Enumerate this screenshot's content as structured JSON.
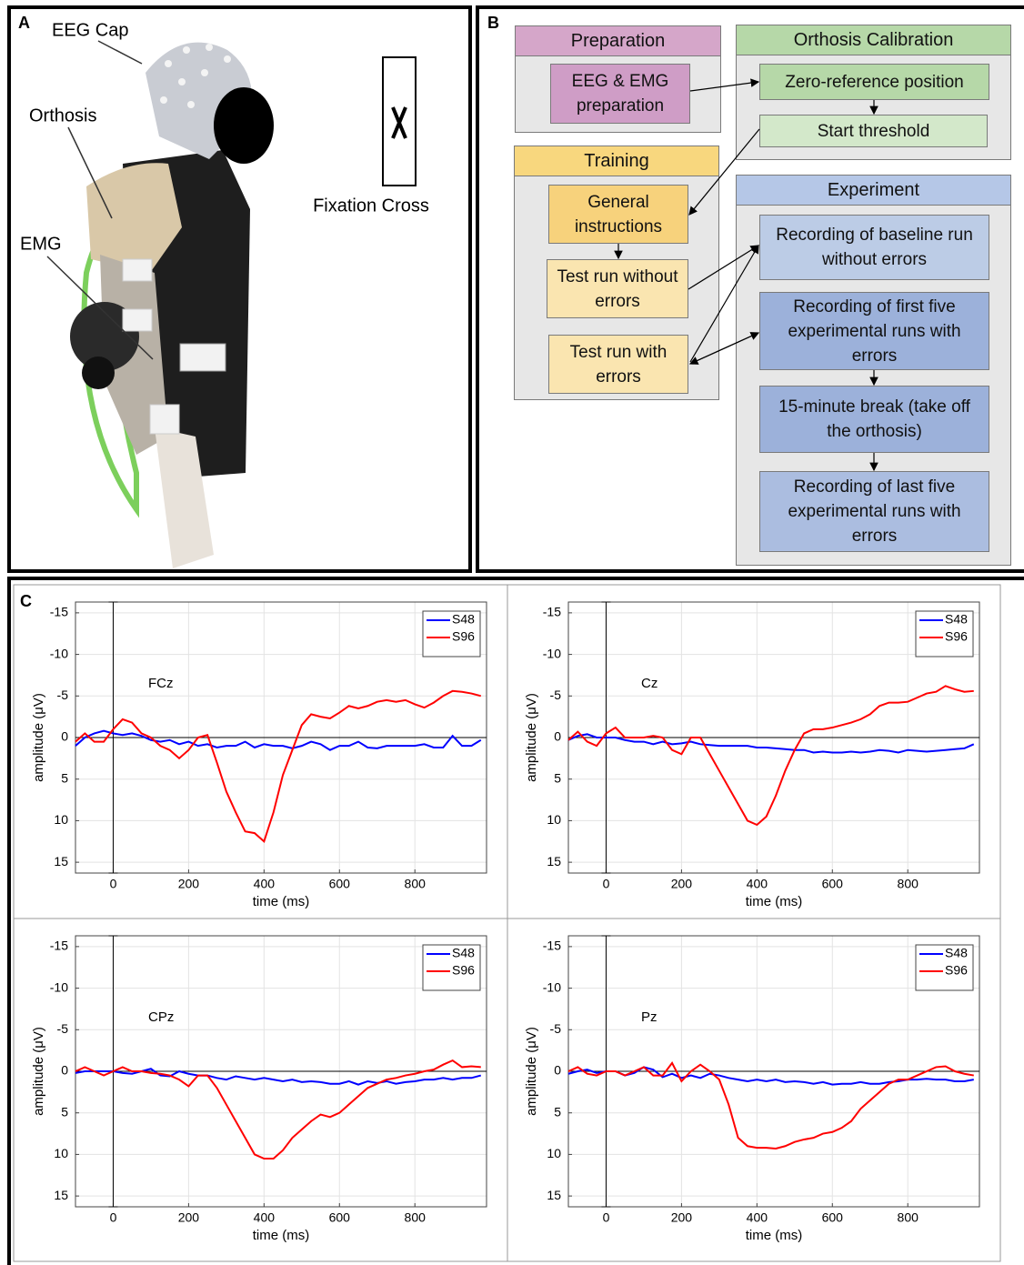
{
  "panel_a": {
    "label": "A",
    "callouts": [
      "EEG Cap",
      "Orthosis",
      "EMG"
    ],
    "fixation": "Fixation Cross"
  },
  "panel_b": {
    "label": "B",
    "groups": [
      {
        "title": "Preparation",
        "items": [
          "EEG & EMG preparation"
        ]
      },
      {
        "title": "Orthosis Calibration",
        "items": [
          "Zero-reference position",
          "Start threshold"
        ]
      },
      {
        "title": "Training",
        "items": [
          "General instructions",
          "Test run without errors",
          "Test run with errors"
        ]
      },
      {
        "title": "Experiment",
        "items": [
          "Recording of baseline run without errors",
          "Recording of first five experimental runs with errors",
          "15-minute break (take off the orthosis)",
          "Recording of last five experimental runs with errors"
        ]
      }
    ]
  },
  "panel_c": {
    "label": "C"
  },
  "chart_data": [
    {
      "type": "line",
      "label": "FCz",
      "x_label": "time (ms)",
      "y_label": "amplitude (μV)",
      "xlim": [
        -100,
        990
      ],
      "ylim": [
        16.3,
        -16.3
      ],
      "xticks": [
        0,
        200,
        400,
        600,
        800
      ],
      "yticks": [
        -15,
        -10,
        -5,
        0,
        5,
        10,
        15
      ],
      "grid": true,
      "hline": 0,
      "vline": 0,
      "legend": "upper right",
      "x": [
        -100,
        -75,
        -50,
        -25,
        0,
        25,
        50,
        75,
        100,
        125,
        150,
        175,
        200,
        225,
        250,
        275,
        300,
        325,
        350,
        375,
        400,
        425,
        450,
        475,
        500,
        525,
        550,
        575,
        600,
        625,
        650,
        675,
        700,
        725,
        750,
        775,
        800,
        825,
        850,
        875,
        900,
        925,
        950,
        975
      ],
      "series": [
        {
          "name": "S48",
          "color": "#0000ff",
          "values": [
            1,
            0,
            -0.5,
            -0.8,
            -0.5,
            -0.3,
            -0.5,
            -0.2,
            0.3,
            0.5,
            0.3,
            0.8,
            0.5,
            1,
            0.8,
            1.2,
            1,
            1,
            0.5,
            1.2,
            0.8,
            1,
            1,
            1.3,
            1,
            0.5,
            0.8,
            1.5,
            1,
            1,
            0.5,
            1.2,
            1.3,
            1,
            1,
            1,
            1,
            0.8,
            1.2,
            1.2,
            -0.2,
            1,
            1,
            0.3
          ]
        },
        {
          "name": "S96",
          "color": "#ff0000",
          "values": [
            0.5,
            -0.5,
            0.5,
            0.5,
            -1,
            -2.2,
            -1.8,
            -0.5,
            0,
            1,
            1.5,
            2.5,
            1.5,
            0,
            -0.3,
            3,
            6.5,
            9,
            11.3,
            11.5,
            12.5,
            9,
            4.5,
            1.5,
            -1.5,
            -2.8,
            -2.5,
            -2.3,
            -3,
            -3.8,
            -3.5,
            -3.8,
            -4.3,
            -4.5,
            -4.3,
            -4.5,
            -4,
            -3.6,
            -4.2,
            -5,
            -5.6,
            -5.5,
            -5.3,
            -5
          ]
        }
      ]
    },
    {
      "type": "line",
      "label": "Cz",
      "x_label": "time (ms)",
      "y_label": "amplitude (μV)",
      "xlim": [
        -100,
        990
      ],
      "ylim": [
        16.3,
        -16.3
      ],
      "xticks": [
        0,
        200,
        400,
        600,
        800
      ],
      "yticks": [
        -15,
        -10,
        -5,
        0,
        5,
        10,
        15
      ],
      "grid": true,
      "hline": 0,
      "vline": 0,
      "legend": "upper right",
      "x": [
        -100,
        -75,
        -50,
        -25,
        0,
        25,
        50,
        75,
        100,
        125,
        150,
        175,
        200,
        225,
        250,
        275,
        300,
        325,
        350,
        375,
        400,
        425,
        450,
        475,
        500,
        525,
        550,
        575,
        600,
        625,
        650,
        675,
        700,
        725,
        750,
        775,
        800,
        825,
        850,
        875,
        900,
        925,
        950,
        975
      ],
      "series": [
        {
          "name": "S48",
          "color": "#0000ff",
          "values": [
            0.3,
            -0.2,
            -0.4,
            0,
            0,
            0,
            0.3,
            0.5,
            0.5,
            0.8,
            0.5,
            0.8,
            0.7,
            0.5,
            0.8,
            0.9,
            1,
            1,
            1,
            1,
            1.2,
            1.2,
            1.3,
            1.4,
            1.5,
            1.5,
            1.8,
            1.7,
            1.8,
            1.8,
            1.7,
            1.8,
            1.7,
            1.5,
            1.6,
            1.8,
            1.5,
            1.6,
            1.7,
            1.6,
            1.5,
            1.4,
            1.3,
            0.8
          ]
        },
        {
          "name": "S96",
          "color": "#ff0000",
          "values": [
            0.3,
            -0.7,
            0.5,
            1,
            -0.5,
            -1.2,
            0,
            0,
            0,
            -0.2,
            0,
            1.5,
            2,
            0,
            0,
            2,
            4,
            6,
            8,
            10,
            10.5,
            9.5,
            7,
            4,
            1.5,
            -0.5,
            -1,
            -1,
            -1.2,
            -1.5,
            -1.8,
            -2.2,
            -2.8,
            -3.8,
            -4.2,
            -4.2,
            -4.3,
            -4.8,
            -5.3,
            -5.5,
            -6.2,
            -5.8,
            -5.5,
            -5.6
          ]
        }
      ]
    },
    {
      "type": "line",
      "label": "CPz",
      "x_label": "time (ms)",
      "y_label": "amplitude (μV)",
      "xlim": [
        -100,
        990
      ],
      "ylim": [
        16.3,
        -16.3
      ],
      "xticks": [
        0,
        200,
        400,
        600,
        800
      ],
      "yticks": [
        -15,
        -10,
        -5,
        0,
        5,
        10,
        15
      ],
      "grid": true,
      "hline": 0,
      "vline": 0,
      "legend": "upper right",
      "x": [
        -100,
        -75,
        -50,
        -25,
        0,
        25,
        50,
        75,
        100,
        125,
        150,
        175,
        200,
        225,
        250,
        275,
        300,
        325,
        350,
        375,
        400,
        425,
        450,
        475,
        500,
        525,
        550,
        575,
        600,
        625,
        650,
        675,
        700,
        725,
        750,
        775,
        800,
        825,
        850,
        875,
        900,
        925,
        950,
        975
      ],
      "series": [
        {
          "name": "S48",
          "color": "#0000ff",
          "values": [
            0.2,
            0,
            0,
            0,
            0,
            0.2,
            0.3,
            0,
            -0.3,
            0.5,
            0.6,
            0,
            0.3,
            0.5,
            0.5,
            0.8,
            1,
            0.6,
            0.8,
            1,
            0.8,
            1,
            1.2,
            1,
            1.3,
            1.2,
            1.3,
            1.5,
            1.5,
            1.2,
            1.6,
            1.2,
            1.4,
            1.2,
            1.5,
            1.3,
            1.2,
            1,
            1,
            0.8,
            1,
            0.8,
            0.8,
            0.5
          ]
        },
        {
          "name": "S96",
          "color": "#ff0000",
          "values": [
            0,
            -0.5,
            0,
            0.5,
            0,
            -0.5,
            0,
            0,
            0.2,
            0.3,
            0.5,
            1,
            1.8,
            0.5,
            0.5,
            2,
            4,
            6,
            8,
            10,
            10.5,
            10.5,
            9.5,
            8,
            7,
            6,
            5.2,
            5.5,
            5,
            4,
            3,
            2,
            1.5,
            1,
            0.8,
            0.5,
            0.3,
            0,
            -0.2,
            -0.8,
            -1.3,
            -0.5,
            -0.6,
            -0.5
          ]
        }
      ]
    },
    {
      "type": "line",
      "label": "Pz",
      "x_label": "time (ms)",
      "y_label": "amplitude (μV)",
      "xlim": [
        -100,
        990
      ],
      "ylim": [
        16.3,
        -16.3
      ],
      "xticks": [
        0,
        200,
        400,
        600,
        800
      ],
      "yticks": [
        -15,
        -10,
        -5,
        0,
        5,
        10,
        15
      ],
      "grid": true,
      "hline": 0,
      "vline": 0,
      "legend": "upper right",
      "x": [
        -100,
        -75,
        -50,
        -25,
        0,
        25,
        50,
        75,
        100,
        125,
        150,
        175,
        200,
        225,
        250,
        275,
        300,
        325,
        350,
        375,
        400,
        425,
        450,
        475,
        500,
        525,
        550,
        575,
        600,
        625,
        650,
        675,
        700,
        725,
        750,
        775,
        800,
        825,
        850,
        875,
        900,
        925,
        950,
        975
      ],
      "series": [
        {
          "name": "S48",
          "color": "#0000ff",
          "values": [
            0.3,
            0,
            -0.2,
            0.2,
            0,
            0,
            0.5,
            0.2,
            -0.5,
            -0.2,
            0.7,
            0.3,
            0.8,
            0.5,
            0.8,
            0.3,
            0.5,
            0.8,
            1,
            1.2,
            1,
            1.2,
            1,
            1.3,
            1.2,
            1.3,
            1.5,
            1.3,
            1.6,
            1.5,
            1.5,
            1.3,
            1.5,
            1.5,
            1.3,
            1.2,
            1,
            1,
            0.9,
            1,
            1,
            1.2,
            1.2,
            1
          ]
        },
        {
          "name": "S96",
          "color": "#ff0000",
          "values": [
            0,
            -0.5,
            0.3,
            0.5,
            0,
            0,
            0.5,
            0,
            -0.5,
            0.5,
            0.5,
            -1,
            1.2,
            0,
            -0.8,
            0,
            1,
            4,
            8,
            9,
            9.2,
            9.2,
            9.3,
            9,
            8.5,
            8.2,
            8,
            7.5,
            7.3,
            6.8,
            6,
            4.5,
            3.5,
            2.5,
            1.5,
            1,
            1,
            0.5,
            0,
            -0.5,
            -0.6,
            0,
            0.3,
            0.5
          ]
        }
      ]
    }
  ]
}
